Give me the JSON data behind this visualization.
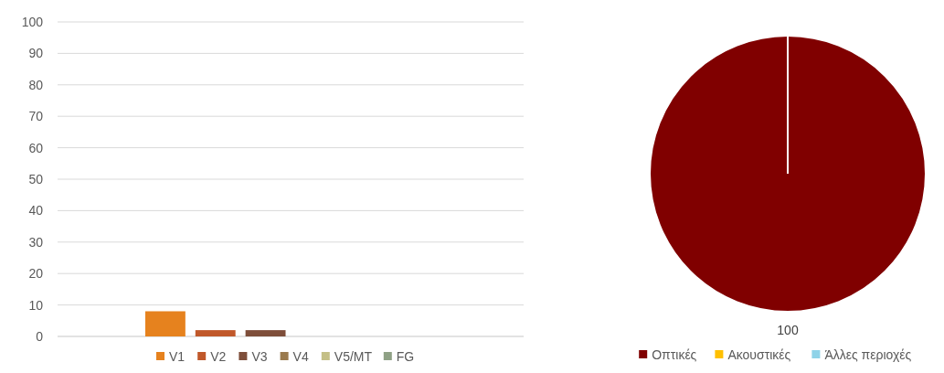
{
  "chart_data": [
    {
      "type": "bar",
      "categories": [
        null
      ],
      "ylim": [
        0,
        100
      ],
      "yticks": [
        0,
        10,
        20,
        30,
        40,
        50,
        60,
        70,
        80,
        90,
        100
      ],
      "grid": "y",
      "legend": "bottom",
      "series": [
        {
          "name": "V1",
          "color": "#e6821e",
          "values": [
            8
          ]
        },
        {
          "name": "V2",
          "color": "#c0582a",
          "values": [
            2
          ]
        },
        {
          "name": "V3",
          "color": "#7e4e3a",
          "values": [
            2
          ]
        },
        {
          "name": "V4",
          "color": "#9a7a4e",
          "values": [
            0
          ]
        },
        {
          "name": "V5/MT",
          "color": "#c4bf86",
          "values": [
            0
          ]
        },
        {
          "name": "FG",
          "color": "#8fa185",
          "values": [
            0
          ]
        }
      ]
    },
    {
      "type": "pie",
      "categories": [
        "Οπτικές",
        "Ακουστικές",
        "Άλλες περιοχές"
      ],
      "values": [
        100,
        0,
        0
      ],
      "colors": [
        "#800000",
        "#ffc000",
        "#8fd3e8"
      ],
      "value_labels": [
        "100",
        null,
        null
      ],
      "legend": "bottom"
    }
  ]
}
